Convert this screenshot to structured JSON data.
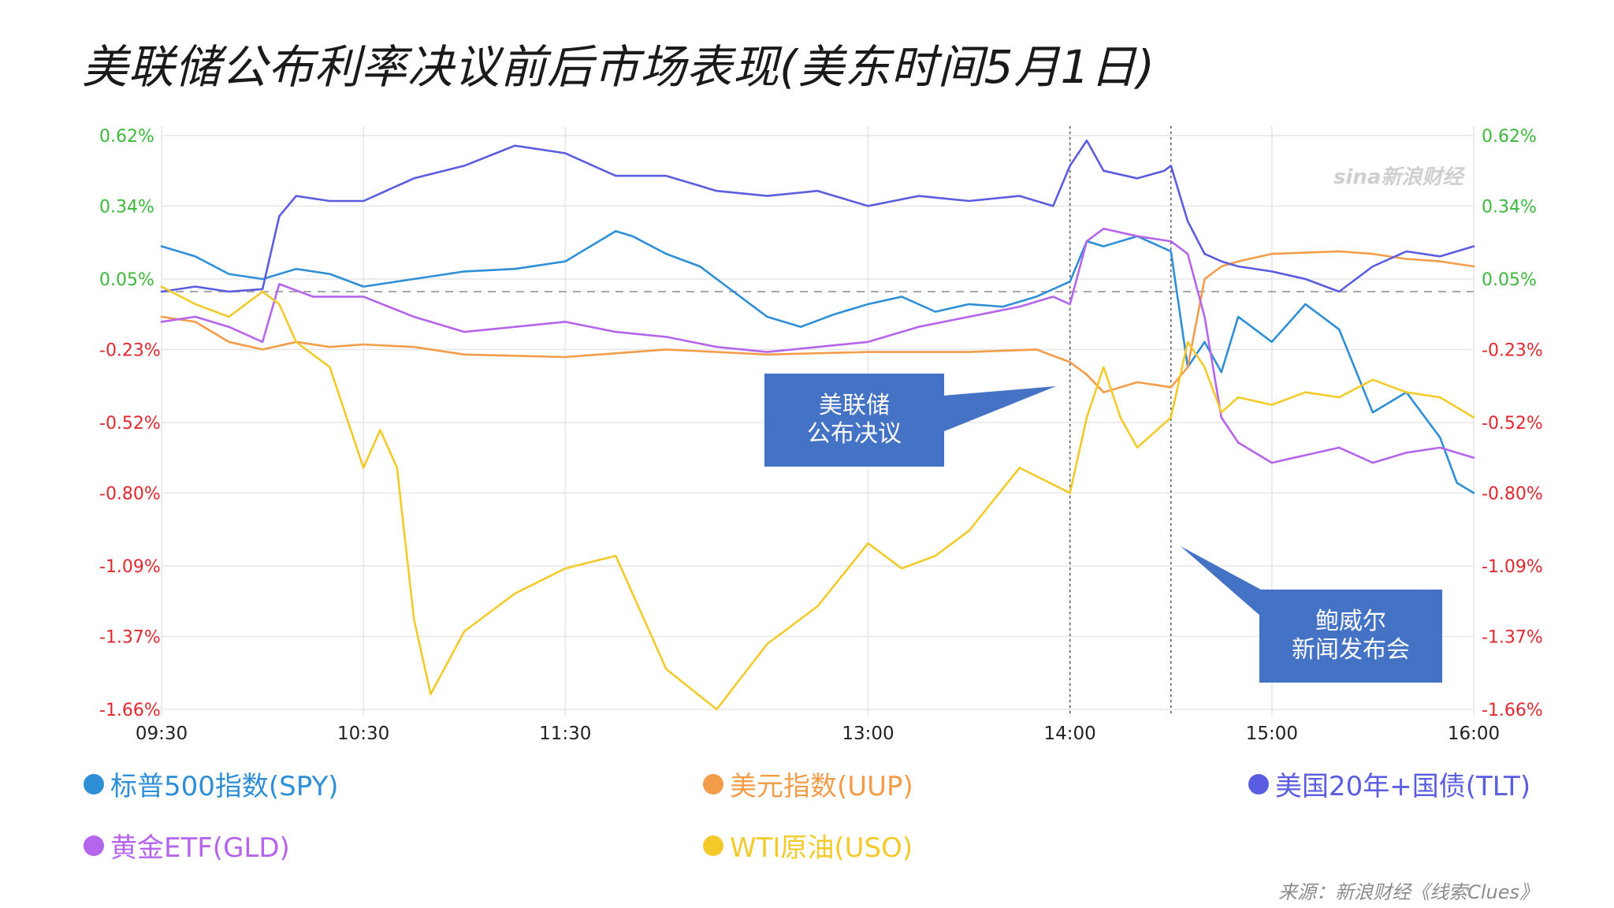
{
  "title": "美联储公布利率决议前后市场表现(美东时间5月1日)",
  "watermark": "sina新浪财经",
  "source": "来源：新浪财经《线索Clues》",
  "callouts": {
    "fed": [
      "美联储",
      "公布决议"
    ],
    "powell": [
      "鲍威尔",
      "新闻发布会"
    ]
  },
  "colors": {
    "SPY": "#2e8fd6",
    "UUP": "#f39c4a",
    "TLT": "#5a5de0",
    "GLD": "#b565ec",
    "USO": "#f4ca2a",
    "positive_tick": "#3cb83c",
    "negative_tick": "#e0282e",
    "callout_bg": "#4472c4"
  },
  "chart_data": {
    "type": "line",
    "x_unit": "time (ET, HH:MM)",
    "x_range": [
      "09:30",
      "16:00"
    ],
    "y_unit": "%",
    "ylim": [
      -1.66,
      0.62
    ],
    "y_ticks": [
      "0.62%",
      "0.34%",
      "0.05%",
      "-0.23%",
      "-0.52%",
      "-0.80%",
      "-1.09%",
      "-1.37%",
      "-1.66%"
    ],
    "x_ticks": [
      "09:30",
      "10:30",
      "11:30",
      "13:00",
      "14:00",
      "15:00",
      "16:00"
    ],
    "grid": true,
    "reference_line_y": 0,
    "event_lines": [
      "14:00",
      "14:30"
    ],
    "legend_position": "bottom",
    "series": [
      {
        "key": "SPY",
        "name": "标普500指数(SPY)",
        "x": [
          "09:30",
          "09:40",
          "09:50",
          "10:00",
          "10:10",
          "10:20",
          "10:30",
          "10:45",
          "11:00",
          "11:15",
          "11:30",
          "11:45",
          "11:50",
          "12:00",
          "12:10",
          "12:20",
          "12:30",
          "12:40",
          "12:50",
          "13:00",
          "13:10",
          "13:20",
          "13:30",
          "13:40",
          "13:50",
          "14:00",
          "14:05",
          "14:10",
          "14:20",
          "14:30",
          "14:35",
          "14:40",
          "14:45",
          "14:50",
          "15:00",
          "15:10",
          "15:20",
          "15:30",
          "15:40",
          "15:50",
          "15:55",
          "16:00"
        ],
        "y": [
          0.18,
          0.14,
          0.07,
          0.05,
          0.09,
          0.07,
          0.02,
          0.05,
          0.08,
          0.09,
          0.12,
          0.24,
          0.22,
          0.15,
          0.1,
          0.0,
          -0.1,
          -0.14,
          -0.09,
          -0.05,
          -0.02,
          -0.08,
          -0.05,
          -0.06,
          -0.02,
          0.04,
          0.2,
          0.18,
          0.22,
          0.16,
          -0.3,
          -0.2,
          -0.32,
          -0.1,
          -0.2,
          -0.05,
          -0.15,
          -0.48,
          -0.4,
          -0.58,
          -0.76,
          -0.8
        ]
      },
      {
        "key": "UUP",
        "name": "美元指数(UUP)",
        "x": [
          "09:30",
          "09:40",
          "09:50",
          "10:00",
          "10:10",
          "10:20",
          "10:30",
          "10:45",
          "11:00",
          "11:30",
          "12:00",
          "12:30",
          "13:00",
          "13:30",
          "13:50",
          "14:00",
          "14:05",
          "14:10",
          "14:20",
          "14:30",
          "14:35",
          "14:40",
          "14:45",
          "14:50",
          "15:00",
          "15:20",
          "15:30",
          "15:40",
          "15:50",
          "16:00"
        ],
        "y": [
          -0.1,
          -0.12,
          -0.2,
          -0.23,
          -0.2,
          -0.22,
          -0.21,
          -0.22,
          -0.25,
          -0.26,
          -0.23,
          -0.25,
          -0.24,
          -0.24,
          -0.23,
          -0.28,
          -0.33,
          -0.4,
          -0.36,
          -0.38,
          -0.3,
          0.05,
          0.1,
          0.12,
          0.15,
          0.16,
          0.15,
          0.13,
          0.12,
          0.1
        ]
      },
      {
        "key": "TLT",
        "name": "美国20年+国债(TLT)",
        "x": [
          "09:30",
          "09:40",
          "09:50",
          "10:00",
          "10:05",
          "10:10",
          "10:20",
          "10:30",
          "10:45",
          "11:00",
          "11:15",
          "11:30",
          "11:45",
          "12:00",
          "12:15",
          "12:30",
          "12:45",
          "13:00",
          "13:15",
          "13:30",
          "13:45",
          "13:55",
          "14:00",
          "14:05",
          "14:10",
          "14:20",
          "14:28",
          "14:30",
          "14:35",
          "14:40",
          "14:45",
          "14:50",
          "15:00",
          "15:10",
          "15:20",
          "15:30",
          "15:40",
          "15:50",
          "16:00"
        ],
        "y": [
          0.0,
          0.02,
          0.0,
          0.01,
          0.3,
          0.38,
          0.36,
          0.36,
          0.45,
          0.5,
          0.58,
          0.55,
          0.46,
          0.46,
          0.4,
          0.38,
          0.4,
          0.34,
          0.38,
          0.36,
          0.38,
          0.34,
          0.5,
          0.6,
          0.48,
          0.45,
          0.48,
          0.5,
          0.28,
          0.15,
          0.12,
          0.1,
          0.08,
          0.05,
          0.0,
          0.1,
          0.16,
          0.14,
          0.18
        ]
      },
      {
        "key": "GLD",
        "name": "黄金ETF(GLD)",
        "x": [
          "09:30",
          "09:40",
          "09:50",
          "10:00",
          "10:05",
          "10:15",
          "10:30",
          "10:45",
          "11:00",
          "11:15",
          "11:30",
          "11:45",
          "12:00",
          "12:15",
          "12:30",
          "12:45",
          "13:00",
          "13:15",
          "13:30",
          "13:45",
          "13:55",
          "14:00",
          "14:05",
          "14:10",
          "14:20",
          "14:30",
          "14:35",
          "14:40",
          "14:45",
          "14:50",
          "15:00",
          "15:10",
          "15:20",
          "15:30",
          "15:40",
          "15:50",
          "16:00"
        ],
        "y": [
          -0.12,
          -0.1,
          -0.14,
          -0.2,
          0.03,
          -0.02,
          -0.02,
          -0.1,
          -0.16,
          -0.14,
          -0.12,
          -0.16,
          -0.18,
          -0.22,
          -0.24,
          -0.22,
          -0.2,
          -0.14,
          -0.1,
          -0.06,
          -0.02,
          -0.05,
          0.2,
          0.25,
          0.22,
          0.2,
          0.15,
          -0.1,
          -0.5,
          -0.6,
          -0.68,
          -0.65,
          -0.62,
          -0.68,
          -0.64,
          -0.62,
          -0.66
        ]
      },
      {
        "key": "USO",
        "name": "WTI原油(USO)",
        "x": [
          "09:30",
          "09:40",
          "09:50",
          "10:00",
          "10:05",
          "10:10",
          "10:20",
          "10:30",
          "10:35",
          "10:40",
          "10:45",
          "10:50",
          "11:00",
          "11:15",
          "11:30",
          "11:45",
          "12:00",
          "12:15",
          "12:30",
          "12:45",
          "13:00",
          "13:10",
          "13:20",
          "13:30",
          "13:45",
          "14:00",
          "14:05",
          "14:10",
          "14:15",
          "14:20",
          "14:30",
          "14:35",
          "14:40",
          "14:45",
          "14:50",
          "15:00",
          "15:10",
          "15:20",
          "15:30",
          "15:40",
          "15:50",
          "16:00"
        ],
        "y": [
          0.02,
          -0.05,
          -0.1,
          0.0,
          -0.05,
          -0.2,
          -0.3,
          -0.7,
          -0.55,
          -0.7,
          -1.3,
          -1.6,
          -1.35,
          -1.2,
          -1.1,
          -1.05,
          -1.5,
          -1.66,
          -1.4,
          -1.25,
          -1.0,
          -1.1,
          -1.05,
          -0.95,
          -0.7,
          -0.8,
          -0.5,
          -0.3,
          -0.5,
          -0.62,
          -0.5,
          -0.2,
          -0.3,
          -0.48,
          -0.42,
          -0.45,
          -0.4,
          -0.42,
          -0.35,
          -0.4,
          -0.42,
          -0.5
        ]
      }
    ]
  }
}
